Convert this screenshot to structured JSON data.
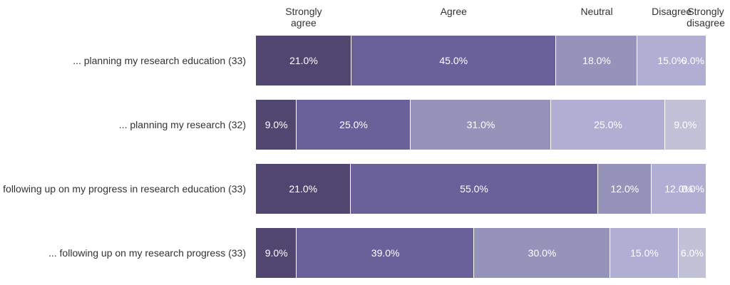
{
  "chart_data": {
    "type": "bar",
    "orientation": "horizontal",
    "stacked": true,
    "value_format": "percent",
    "series": [
      {
        "name": "Strongly agree",
        "color": "#51466f"
      },
      {
        "name": "Agree",
        "color": "#6a619a"
      },
      {
        "name": "Neutral",
        "color": "#9593b9"
      },
      {
        "name": "Disagree",
        "color": "#b0aed3"
      },
      {
        "name": "Strongly disagree",
        "color": "#c1c1d7"
      }
    ],
    "header_labels": [
      [
        "Strongly",
        "agree"
      ],
      [
        "Agree"
      ],
      [
        "Neutral"
      ],
      [
        "Disagree"
      ],
      [
        "Strongly",
        "disagree"
      ]
    ],
    "categories": [
      "... planning my research education (33)",
      "... planning my research (32)",
      "following up on my progress in research education (33)",
      "... following up on my research progress (33)"
    ],
    "values": [
      [
        21.0,
        45.0,
        18.0,
        15.0,
        0.0
      ],
      [
        9.0,
        25.0,
        31.0,
        25.0,
        9.0
      ],
      [
        21.0,
        55.0,
        12.0,
        12.0,
        0.0
      ],
      [
        9.0,
        39.0,
        30.0,
        15.0,
        6.0
      ]
    ],
    "xlim": [
      0,
      100
    ],
    "title": "",
    "xlabel": "",
    "ylabel": ""
  }
}
